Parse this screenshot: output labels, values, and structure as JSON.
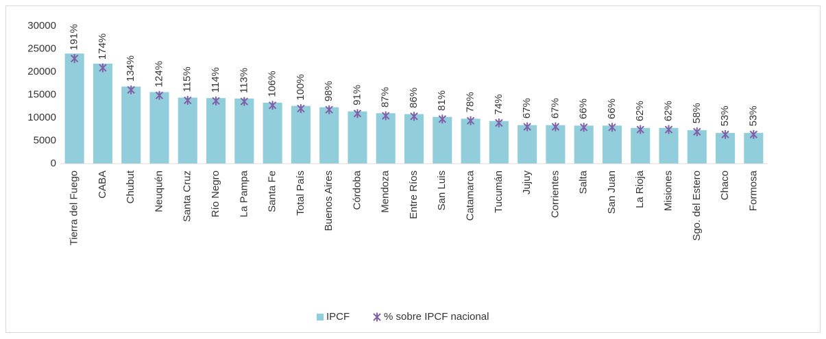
{
  "chart_data": {
    "type": "bar",
    "categories": [
      "Tierra del Fuego",
      "CABA",
      "Chubut",
      "Neuquén",
      "Santa Cruz",
      "Río Negro",
      "La Pampa",
      "Santa Fe",
      "Total País",
      "Buenos Aires",
      "Córdoba",
      "Mendoza",
      "Entre Ríos",
      "San Luis",
      "Catamarca",
      "Tucumán",
      "Jujuy",
      "Corrientes",
      "Salta",
      "San Juan",
      "La Rioja",
      "Misiones",
      "Sgo. del Estero",
      "Chaco",
      "Formosa"
    ],
    "series": [
      {
        "name": "IPCF",
        "color": "#92cddc",
        "values": [
          24000,
          21800,
          16800,
          15600,
          14400,
          14300,
          14200,
          13300,
          12600,
          12300,
          11400,
          11000,
          10800,
          10200,
          9800,
          9300,
          8400,
          8400,
          8300,
          8300,
          7800,
          7800,
          7300,
          6700,
          6700
        ]
      },
      {
        "name": "% sobre IPCF nacional",
        "color": "#7f5fa8",
        "axis": "y2",
        "marker": "asterisk",
        "values": [
          191,
          174,
          134,
          124,
          115,
          114,
          113,
          106,
          100,
          98,
          91,
          87,
          86,
          81,
          78,
          74,
          67,
          67,
          66,
          66,
          62,
          62,
          58,
          53,
          53
        ],
        "value_labels": [
          "191%",
          "174%",
          "134%",
          "124%",
          "115%",
          "114%",
          "113%",
          "106%",
          "100%",
          "98%",
          "91%",
          "87%",
          "86%",
          "81%",
          "78%",
          "74%",
          "67%",
          "67%",
          "66%",
          "66%",
          "62%",
          "62%",
          "58%",
          "53%",
          "53%"
        ]
      }
    ],
    "ylim": [
      0,
      30000
    ],
    "yticks": [
      0,
      5000,
      10000,
      15000,
      20000,
      25000,
      30000
    ],
    "y2lim": [
      0,
      250
    ],
    "grid": false,
    "legend": "bottom"
  }
}
